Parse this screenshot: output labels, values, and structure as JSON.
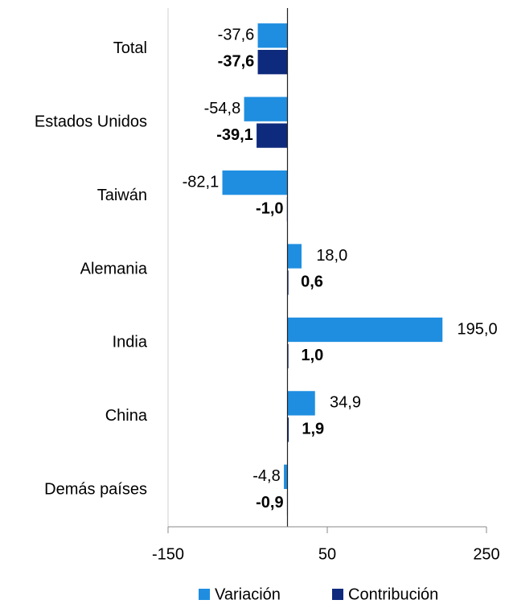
{
  "chart_data": {
    "type": "hbar",
    "categories": [
      "Total",
      "Estados Unidos",
      "Taiwán",
      "Alemania",
      "India",
      "China",
      "Demás países"
    ],
    "series": [
      {
        "name": "Variación",
        "color": "#1f8ee0",
        "values": [
          -37.6,
          -54.8,
          -82.1,
          18.0,
          195.0,
          34.9,
          -4.8
        ],
        "value_labels": [
          "-37,6",
          "-54,8",
          "-82,1",
          "18,0",
          "195,0",
          "34,9",
          "-4,8"
        ]
      },
      {
        "name": "Contribución",
        "color": "#0e2a7c",
        "values": [
          -37.6,
          -39.1,
          -1.0,
          0.6,
          1.0,
          1.9,
          -0.9
        ],
        "value_labels": [
          "-37,6",
          "-39,1",
          "-1,0",
          "0,6",
          "1,0",
          "1,9",
          "-0,9"
        ]
      }
    ],
    "xlim": [
      -150,
      250
    ],
    "xticks": [
      -150,
      50,
      250
    ],
    "legend": "bottom"
  }
}
